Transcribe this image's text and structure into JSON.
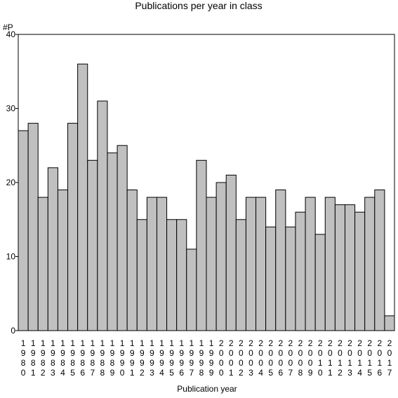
{
  "chart_data": {
    "type": "bar",
    "title": "Publications per year in class",
    "ylabel": "#P",
    "xlabel": "Publication year",
    "ylim": [
      0,
      40
    ],
    "yticks": [
      0,
      10,
      20,
      30,
      40
    ],
    "grid": false,
    "legend": "none",
    "bar_color": "#c0c0c0",
    "categories": [
      "1980",
      "1981",
      "1982",
      "1983",
      "1984",
      "1985",
      "1986",
      "1987",
      "1988",
      "1989",
      "1990",
      "1991",
      "1992",
      "1993",
      "1994",
      "1995",
      "1996",
      "1997",
      "1998",
      "1999",
      "2000",
      "2001",
      "2002",
      "2003",
      "2004",
      "2005",
      "2006",
      "2007",
      "2008",
      "2009",
      "2010",
      "2011",
      "2012",
      "2013",
      "2014",
      "2015",
      "2016",
      "2017"
    ],
    "values": [
      27,
      28,
      18,
      22,
      19,
      28,
      36,
      23,
      31,
      24,
      25,
      19,
      15,
      18,
      18,
      15,
      15,
      11,
      23,
      18,
      20,
      21,
      15,
      18,
      18,
      14,
      19,
      14,
      16,
      18,
      13,
      18,
      17,
      17,
      16,
      18,
      19,
      2
    ]
  }
}
